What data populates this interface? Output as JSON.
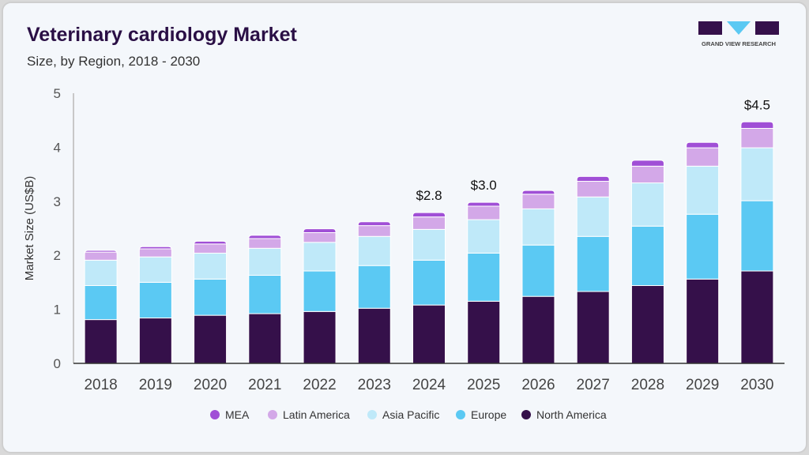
{
  "header": {
    "title": "Veterinary cardiology Market",
    "subtitle": "Size, by Region, 2018 - 2030"
  },
  "logo": {
    "text": "GRAND VIEW RESEARCH"
  },
  "chart_data": {
    "type": "bar",
    "stacked": true,
    "title": "Veterinary cardiology Market",
    "subtitle": "Size, by Region, 2018 - 2030",
    "xlabel": "",
    "ylabel": "Market Size (US$B)",
    "ylim": [
      0,
      5
    ],
    "yticks": [
      0,
      1,
      2,
      3,
      4,
      5
    ],
    "grid": false,
    "legend_position": "bottom",
    "categories": [
      "2018",
      "2019",
      "2020",
      "2021",
      "2022",
      "2023",
      "2024",
      "2025",
      "2026",
      "2027",
      "2028",
      "2029",
      "2030"
    ],
    "series": [
      {
        "name": "North America",
        "color": "#35104a",
        "values": [
          0.81,
          0.84,
          0.89,
          0.92,
          0.96,
          1.02,
          1.08,
          1.15,
          1.24,
          1.33,
          1.44,
          1.56,
          1.71
        ]
      },
      {
        "name": "Europe",
        "color": "#5bc9f3",
        "values": [
          0.63,
          0.66,
          0.67,
          0.71,
          0.75,
          0.79,
          0.83,
          0.89,
          0.95,
          1.02,
          1.1,
          1.2,
          1.3
        ]
      },
      {
        "name": "Asia Pacific",
        "color": "#bfe9f9",
        "values": [
          0.47,
          0.47,
          0.48,
          0.5,
          0.53,
          0.54,
          0.57,
          0.62,
          0.67,
          0.73,
          0.8,
          0.89,
          0.98
        ]
      },
      {
        "name": "Latin America",
        "color": "#d3a8e8",
        "values": [
          0.15,
          0.15,
          0.17,
          0.18,
          0.18,
          0.2,
          0.23,
          0.25,
          0.27,
          0.29,
          0.31,
          0.34,
          0.36
        ]
      },
      {
        "name": "MEA",
        "color": "#a04fd6",
        "values": [
          0.03,
          0.04,
          0.05,
          0.06,
          0.07,
          0.07,
          0.08,
          0.07,
          0.07,
          0.09,
          0.11,
          0.1,
          0.12
        ]
      }
    ],
    "annotations": [
      {
        "category": "2024",
        "text": "$2.8"
      },
      {
        "category": "2025",
        "text": "$3.0"
      },
      {
        "category": "2030",
        "text": "$4.5"
      }
    ],
    "legend_order": [
      "MEA",
      "Latin America",
      "Asia Pacific",
      "Europe",
      "North America"
    ]
  }
}
